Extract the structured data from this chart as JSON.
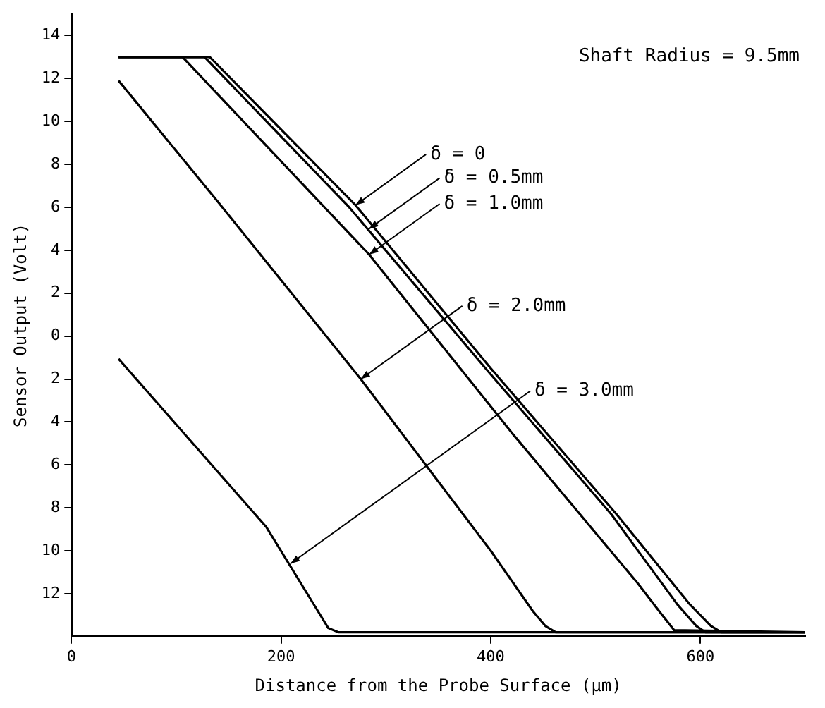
{
  "chart_data": {
    "type": "line",
    "xlabel": "Distance from the Probe Surface (μm)",
    "ylabel": "Sensor Output (Volt)",
    "xlim": [
      0,
      700
    ],
    "xticks": [
      0,
      200,
      400,
      600
    ],
    "ylim": [
      -14,
      15
    ],
    "yticks": [
      {
        "value": -12,
        "label": "12"
      },
      {
        "value": -10,
        "label": "10"
      },
      {
        "value": -8,
        "label": "8"
      },
      {
        "value": -6,
        "label": "6"
      },
      {
        "value": -4,
        "label": "4"
      },
      {
        "value": -2,
        "label": "2"
      },
      0,
      2,
      4,
      6,
      8,
      10,
      12,
      14
    ],
    "grid": false,
    "legend": false,
    "marker": "none",
    "line_style": "solid",
    "series": [
      {
        "color": "#000000",
        "x": [
          45,
          132,
          271,
          400,
          520,
          590,
          610,
          620,
          700
        ],
        "values": [
          13,
          13,
          6.1,
          -1.5,
          -8.3,
          -12.5,
          -13.5,
          -13.8,
          -13.8
        ]
      },
      {
        "color": "#000000",
        "x": [
          45,
          127,
          265,
          395,
          515,
          578,
          596,
          605,
          700
        ],
        "values": [
          13,
          13,
          6.0,
          -1.5,
          -8.3,
          -12.5,
          -13.5,
          -13.8,
          -13.8
        ]
      },
      {
        "color": "#000000",
        "x": [
          45,
          106,
          284,
          420,
          540,
          562,
          575,
          700
        ],
        "values": [
          13,
          13,
          3.8,
          -4.5,
          -11.5,
          -12.9,
          -13.7,
          -13.8
        ]
      },
      {
        "color": "#000000",
        "x": [
          45,
          139,
          276,
          400,
          440,
          452,
          462,
          700
        ],
        "values": [
          11.9,
          6.3,
          -2.0,
          -10,
          -12.8,
          -13.5,
          -13.8,
          -13.8
        ]
      },
      {
        "color": "#000000",
        "x": [
          45,
          186,
          235,
          245,
          255,
          700
        ],
        "values": [
          -1.06,
          -8.9,
          -12.8,
          -13.6,
          -13.8,
          -13.8
        ]
      }
    ],
    "annotations": [
      "Shaft Radius = 9.5mm",
      {
        "text": "δ = 0",
        "x": 271,
        "y": 6.1
      },
      {
        "text": "δ = 0.5mm",
        "x": 284,
        "y": 5.0
      },
      {
        "text": "δ = 1.0mm",
        "x": 284,
        "y": 3.8
      },
      {
        "text": "δ = 2.0mm",
        "x": 276,
        "y": -2.0
      },
      {
        "text": "δ = 3.0mm",
        "x": 209,
        "y": -10.6
      }
    ]
  }
}
